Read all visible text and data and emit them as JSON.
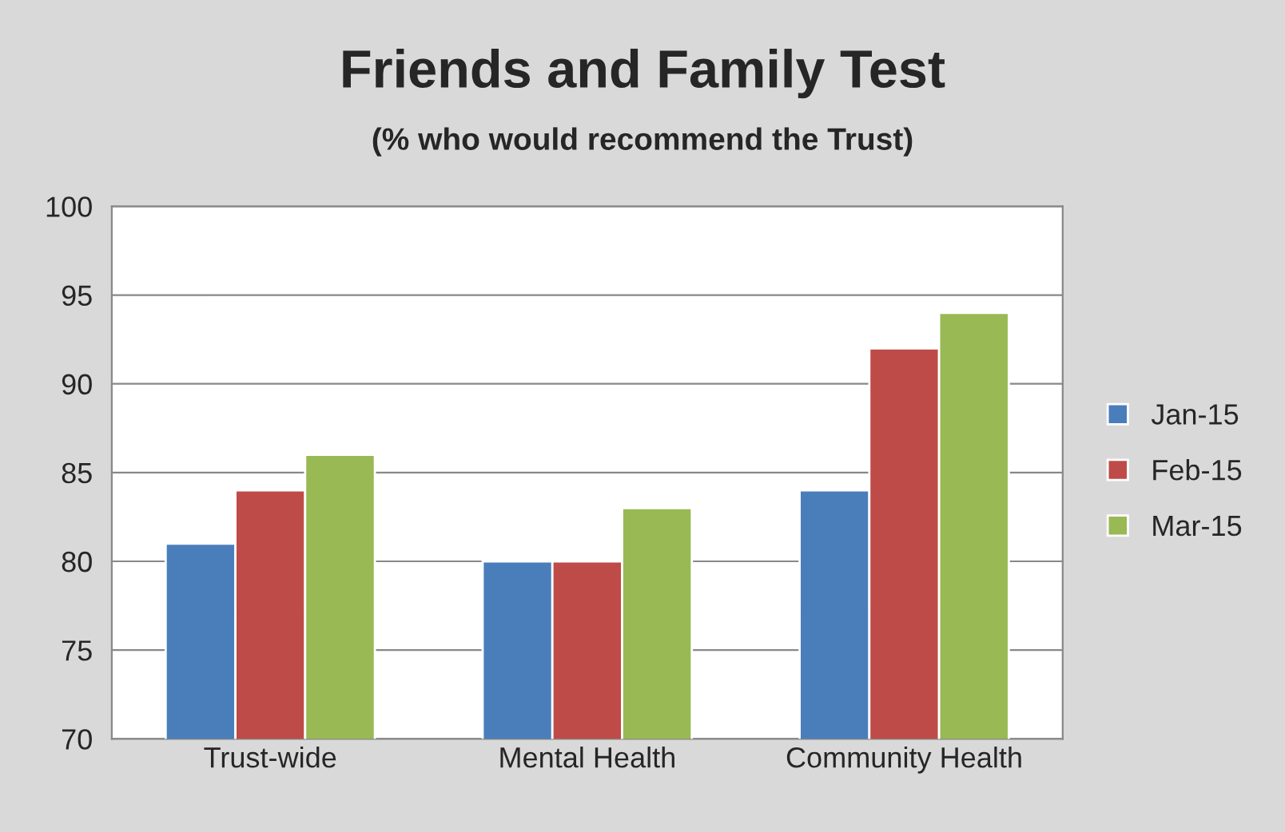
{
  "chart_data": {
    "type": "bar",
    "title": "Friends and Family Test",
    "subtitle": "(% who would recommend the Trust)",
    "categories": [
      "Trust-wide",
      "Mental Health",
      "Community Health"
    ],
    "series": [
      {
        "name": "Jan-15",
        "color": "#4a7ebb",
        "values": [
          81,
          80,
          84
        ]
      },
      {
        "name": "Feb-15",
        "color": "#be4b48",
        "values": [
          84,
          80,
          92
        ]
      },
      {
        "name": "Mar-15",
        "color": "#98b954",
        "values": [
          86,
          83,
          94
        ]
      }
    ],
    "ylim": [
      70,
      100
    ],
    "yticks": [
      70,
      75,
      80,
      85,
      90,
      95,
      100
    ],
    "grid": "y",
    "legend": "right"
  }
}
